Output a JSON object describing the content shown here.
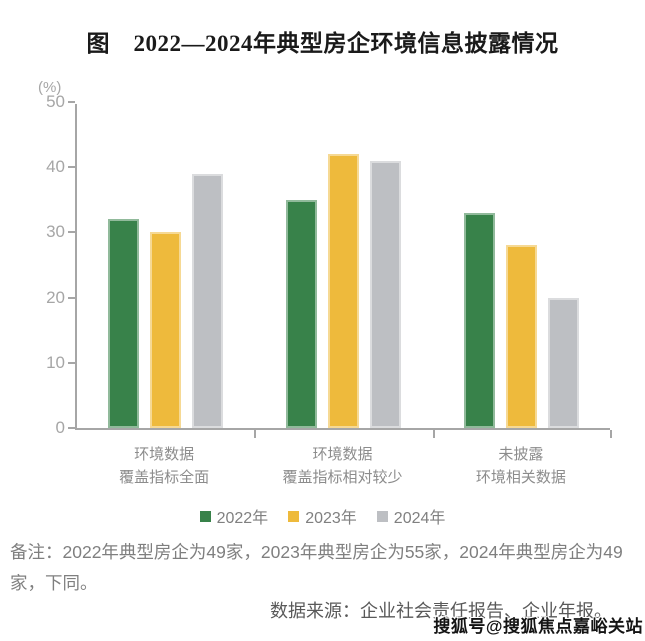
{
  "title": "图　2022—2024年典型房企环境信息披露情况",
  "chart_data": {
    "type": "bar",
    "title": "图　2022—2024年典型房企环境信息披露情况",
    "unit_label": "(%)",
    "xlabel": "",
    "ylabel": "(%)",
    "ylim": [
      0,
      50
    ],
    "ytick_step": 10,
    "grid": false,
    "legend_position": "bottom",
    "categories": [
      "环境数据\n覆盖指标全面",
      "环境数据\n覆盖指标相对较少",
      "未披露\n环境相关数据"
    ],
    "series": [
      {
        "name": "2022年",
        "color": "#38824A",
        "values": [
          32,
          35,
          33
        ]
      },
      {
        "name": "2023年",
        "color": "#EEBA3C",
        "values": [
          30,
          42,
          28
        ]
      },
      {
        "name": "2024年",
        "color": "#BDBFC3",
        "values": [
          39,
          41,
          20
        ]
      }
    ]
  },
  "note": "备注：2022年典型房企为49家，2023年典型房企为55家，2024年典型房企为49家，下同。",
  "source": "数据来源：企业社会责任报告、企业年报。",
  "watermark": "搜狐号@搜狐焦点嘉峪关站",
  "colors": {
    "axis": "#A6A6A6",
    "tick_text": "#A6A6A6",
    "category_text": "#8C8C8C",
    "legend_text": "#808080",
    "note_text": "#7F7F7F",
    "source_text": "#595959"
  }
}
